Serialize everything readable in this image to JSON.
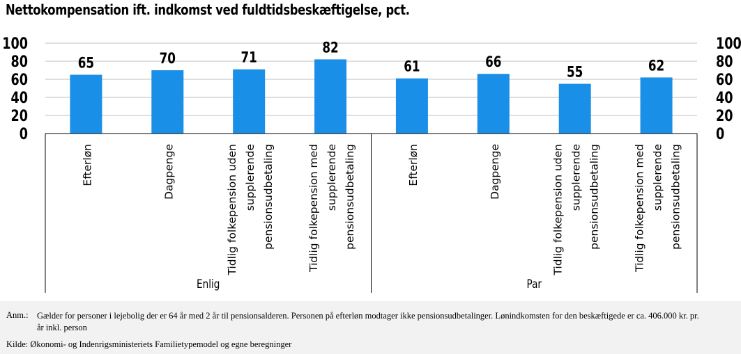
{
  "title": "Nettokompensation ift. indkomst ved fuldtidsbeskæftigelse, pct.",
  "notes": {
    "anm_label": "Anm.:",
    "anm_text": "Gælder for personer i lejebolig der er 64 år med 2 år til pensionsalderen. Personen på efterløn modtager ikke pensionsudbetalinger. Lønindkomsten for den beskæftigede er ca. 406.000 kr. pr. år inkl. person",
    "source": "Kilde: Økonomi- og Indenrigsministeriets Familietypemodel og egne beregninger"
  },
  "chart_data": {
    "type": "bar",
    "title": "Nettokompensation ift. indkomst ved fuldtidsbeskæftigelse, pct.",
    "ylim": [
      0,
      100
    ],
    "yticks": [
      "0",
      "20",
      "40",
      "60",
      "80",
      "100"
    ],
    "grid": true,
    "bar_color": "#1a8fe8",
    "groups": [
      "Enlig",
      "Par"
    ],
    "categories": [
      [
        "Efterløn"
      ],
      [
        "Dagpenge"
      ],
      [
        "Tidlig folkepension uden",
        "supplerende",
        "pensionsudbetaling"
      ],
      [
        "Tidlig folkepension med",
        "supplerende",
        "pensionsudbetaling"
      ],
      [
        "Efterløn"
      ],
      [
        "Dagpenge"
      ],
      [
        "Tidlig folkepension uden",
        "supplerende",
        "pensionsudbetaling"
      ],
      [
        "Tidlig folkepension med",
        "supplerende",
        "pensionsudbetaling"
      ]
    ],
    "values": [
      65,
      70,
      71,
      82,
      61,
      66,
      55,
      62
    ],
    "data_labels": [
      "65",
      "70",
      "71",
      "82",
      "61",
      "66",
      "55",
      "62"
    ]
  }
}
